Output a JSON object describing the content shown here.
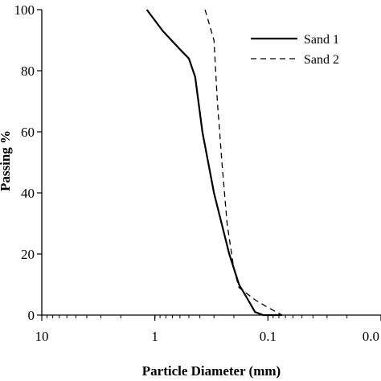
{
  "chart_data": {
    "type": "line",
    "xlabel": "Particle Diameter (mm)",
    "ylabel": "Passing %",
    "x_scale": "log",
    "x_reversed": true,
    "xlim": [
      10,
      0.01
    ],
    "ylim": [
      0,
      100
    ],
    "x_ticks": [
      10,
      1,
      0.1,
      0.01
    ],
    "x_tick_labels": [
      "10",
      "1",
      "0.1",
      "0.0"
    ],
    "y_ticks": [
      0,
      20,
      40,
      60,
      80,
      100
    ],
    "y_tick_labels": [
      "0",
      "20",
      "40",
      "60",
      "80",
      "100"
    ],
    "grid": false,
    "legend_position": "top-right",
    "series": [
      {
        "name": "Sand 1",
        "style": "solid",
        "color": "#000000",
        "points": [
          {
            "x": 1.18,
            "y": 100
          },
          {
            "x": 0.85,
            "y": 93
          },
          {
            "x": 0.6,
            "y": 87
          },
          {
            "x": 0.5,
            "y": 84
          },
          {
            "x": 0.44,
            "y": 78
          },
          {
            "x": 0.38,
            "y": 60
          },
          {
            "x": 0.3,
            "y": 40
          },
          {
            "x": 0.22,
            "y": 20
          },
          {
            "x": 0.18,
            "y": 10
          },
          {
            "x": 0.15,
            "y": 5
          },
          {
            "x": 0.13,
            "y": 1
          },
          {
            "x": 0.11,
            "y": 0
          },
          {
            "x": 0.075,
            "y": 0
          }
        ]
      },
      {
        "name": "Sand 2",
        "style": "dashed",
        "color": "#000000",
        "points": [
          {
            "x": 0.36,
            "y": 100
          },
          {
            "x": 0.3,
            "y": 90
          },
          {
            "x": 0.28,
            "y": 70
          },
          {
            "x": 0.255,
            "y": 50
          },
          {
            "x": 0.23,
            "y": 30
          },
          {
            "x": 0.2,
            "y": 15
          },
          {
            "x": 0.18,
            "y": 9
          },
          {
            "x": 0.13,
            "y": 5
          },
          {
            "x": 0.1,
            "y": 2.5
          },
          {
            "x": 0.075,
            "y": 0
          }
        ]
      }
    ]
  }
}
